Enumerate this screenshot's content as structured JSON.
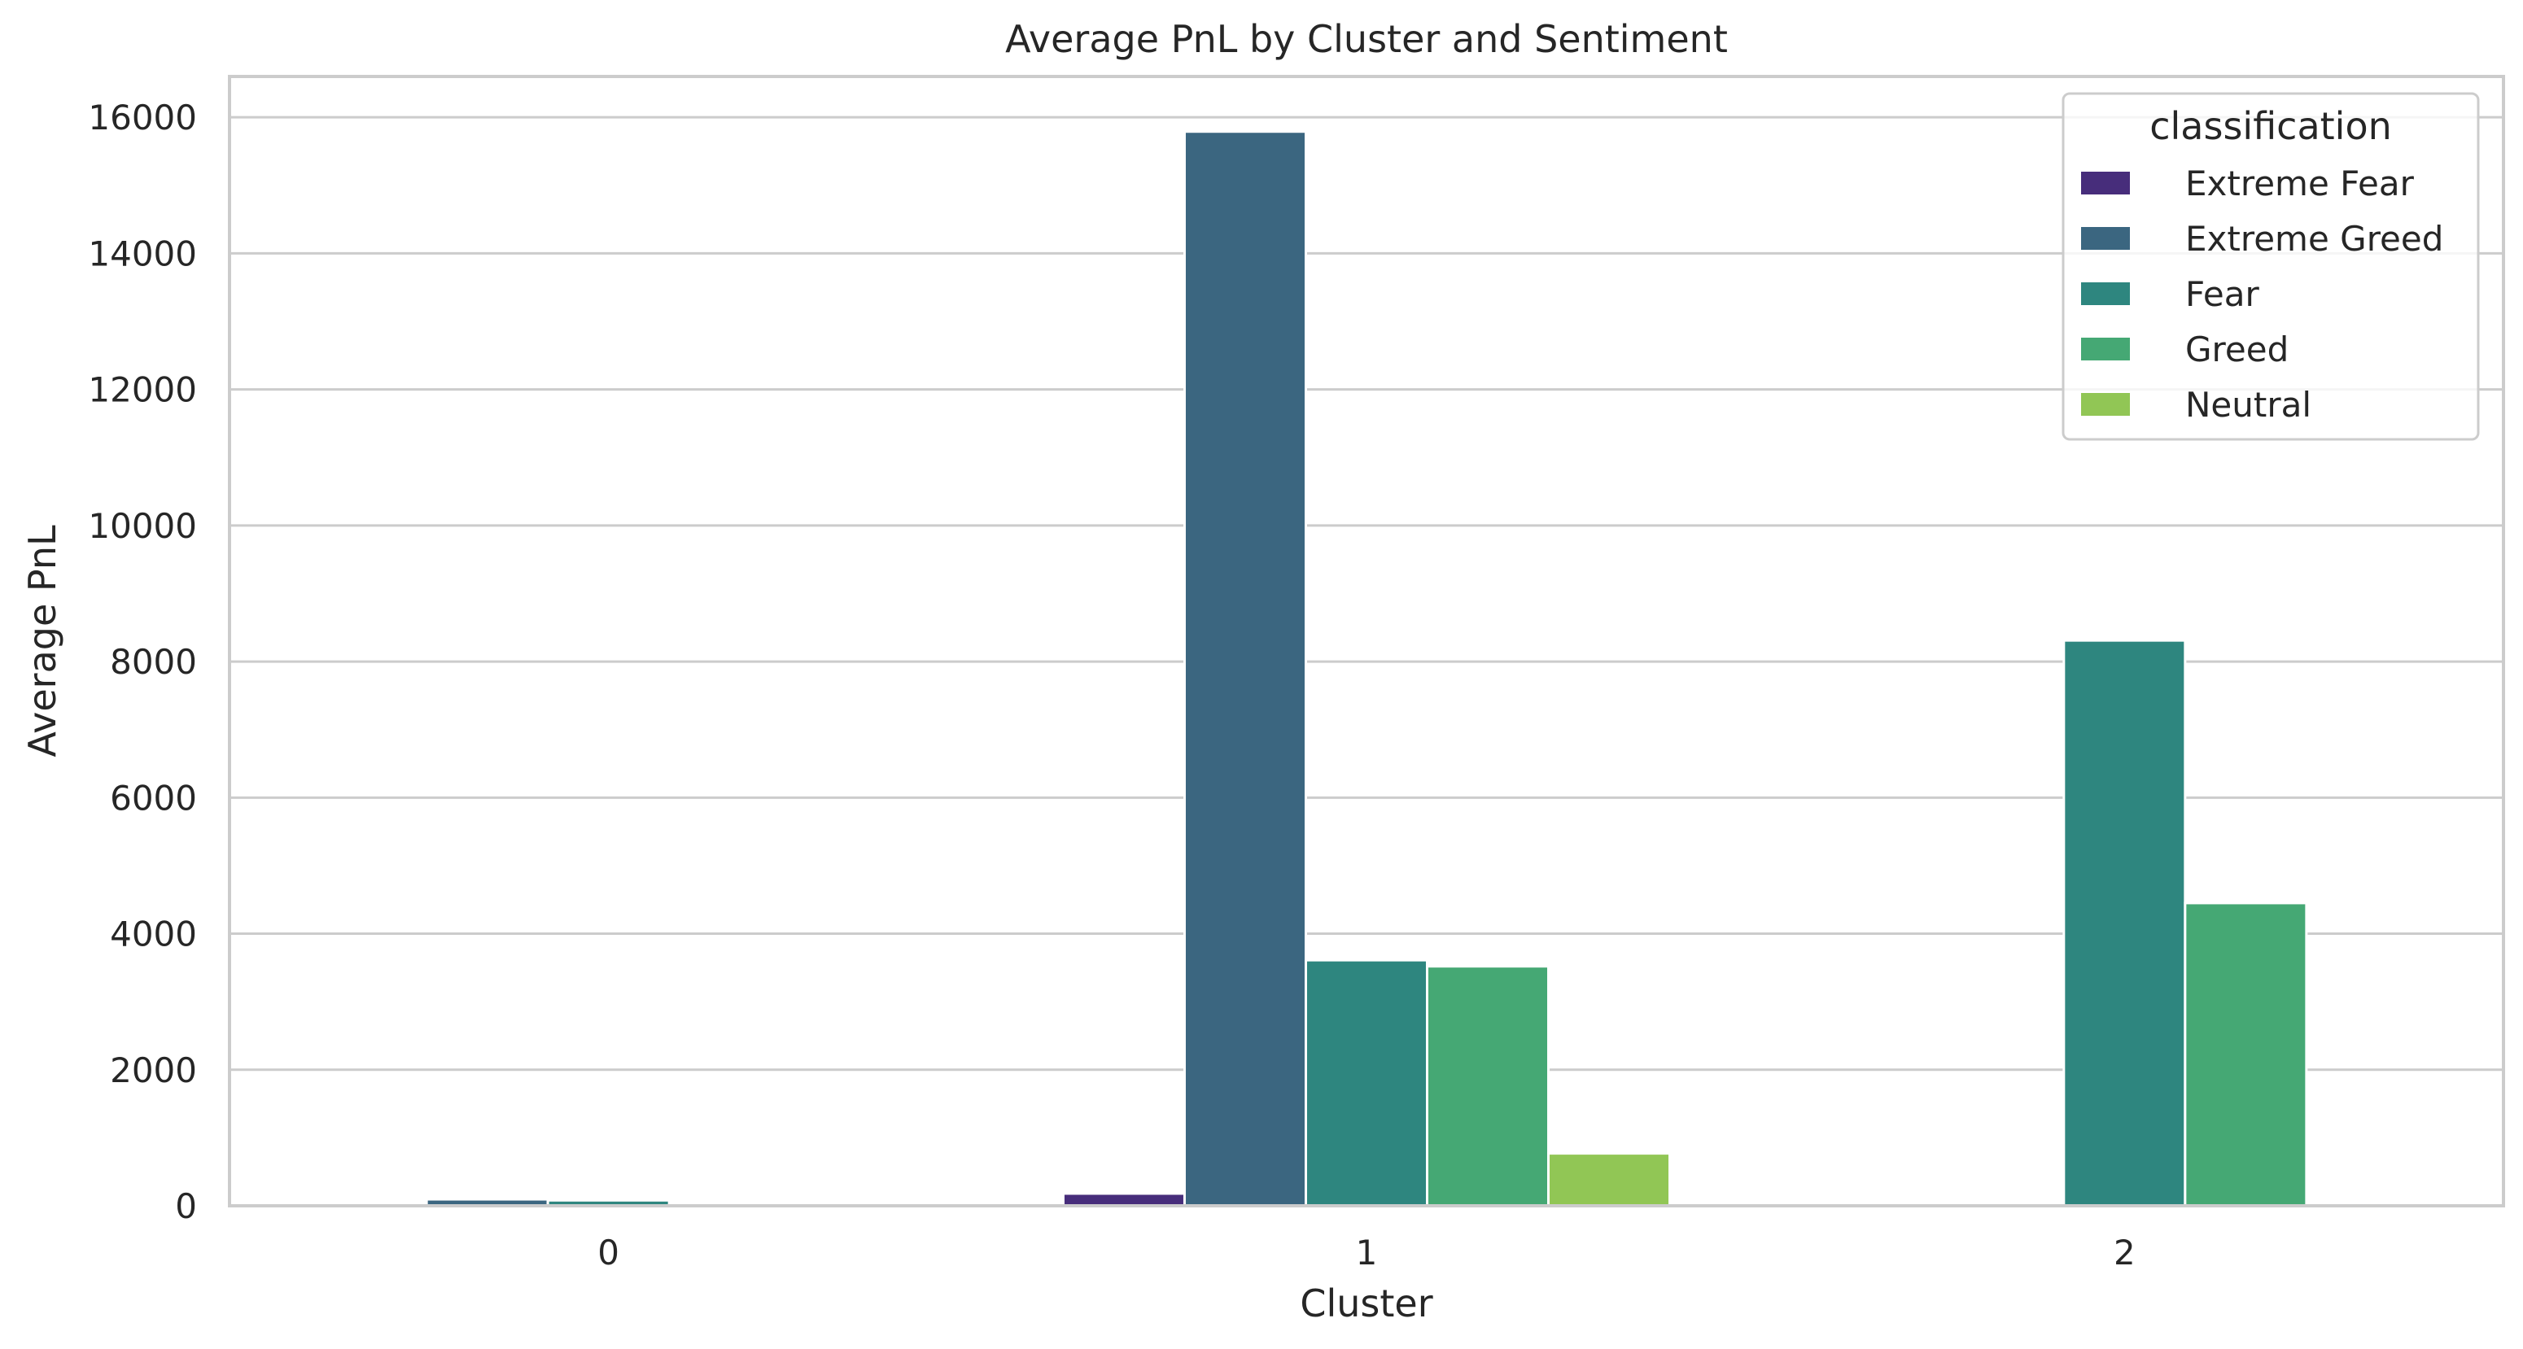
{
  "chart_data": {
    "type": "bar",
    "title": "Average PnL by Cluster and Sentiment",
    "xlabel": "Cluster",
    "ylabel": "Average PnL",
    "categories": [
      "0",
      "1",
      "2"
    ],
    "ylim": [
      0,
      16600
    ],
    "yticks": [
      "0",
      "2000",
      "4000",
      "6000",
      "8000",
      "10000",
      "12000",
      "14000",
      "16000"
    ],
    "grid": true,
    "legend_title": "classification",
    "legend_position": "top-right",
    "series": [
      {
        "name": "Extreme Fear",
        "color": "#472d7b",
        "values": [
          0,
          180,
          0
        ]
      },
      {
        "name": "Extreme Greed",
        "color": "#3b6680",
        "values": [
          95,
          15790,
          0
        ]
      },
      {
        "name": "Fear",
        "color": "#2e867f",
        "values": [
          80,
          3610,
          8310
        ]
      },
      {
        "name": "Greed",
        "color": "#45a874",
        "values": [
          0,
          3520,
          4450
        ]
      },
      {
        "name": "Neutral",
        "color": "#91c655",
        "values": [
          0,
          770,
          0
        ]
      }
    ]
  }
}
